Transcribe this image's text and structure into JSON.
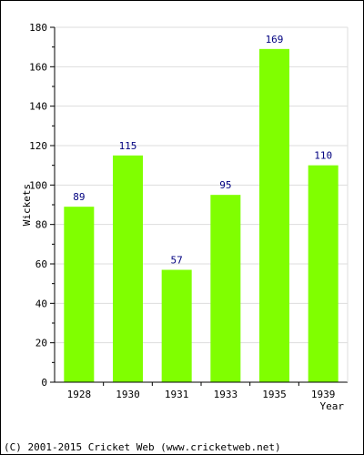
{
  "chart_data": {
    "type": "bar",
    "categories": [
      "1928",
      "1930",
      "1931",
      "1933",
      "1935",
      "1939"
    ],
    "values": [
      89,
      115,
      57,
      95,
      169,
      110
    ],
    "data_labels": [
      "89",
      "115",
      "57",
      "95",
      "169",
      "110"
    ],
    "title": "",
    "xlabel": "Year",
    "ylabel": "Wickets",
    "ylim": [
      0,
      180
    ],
    "yticks": [
      0,
      20,
      40,
      60,
      80,
      100,
      120,
      140,
      160,
      180
    ],
    "ytick_labels": [
      "0",
      "20",
      "40",
      "60",
      "80",
      "100",
      "120",
      "140",
      "160",
      "180"
    ],
    "grid": true,
    "bar_color": "#80ff00",
    "label_color": "#000080"
  },
  "footer": {
    "copyright": "(C) 2001-2015 Cricket Web (www.cricketweb.net)"
  }
}
